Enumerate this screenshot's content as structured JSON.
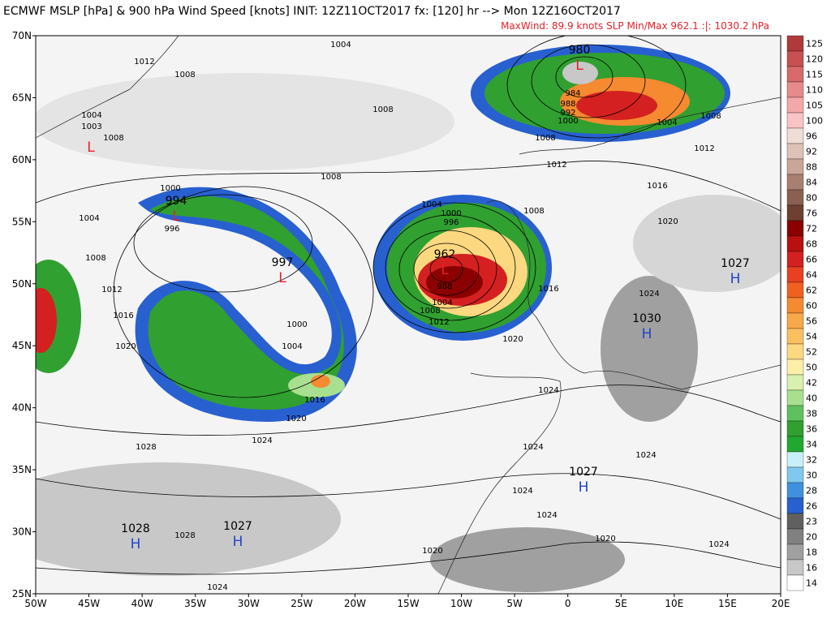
{
  "header": {
    "title": "ECMWF MSLP [hPa] & 900 hPa Wind Speed [knots] INIT: 12Z11OCT2017 fx: [120] hr --> Mon 12Z16OCT2017",
    "subtitle": "MaxWind:  89.9 knots     SLP Min/Max 962.1 :|: 1030.2 hPa"
  },
  "map": {
    "lat_labels": [
      "70N",
      "65N",
      "60N",
      "55N",
      "50N",
      "45N",
      "40N",
      "35N",
      "30N",
      "25N"
    ],
    "lon_labels": [
      "50W",
      "45W",
      "40W",
      "35W",
      "30W",
      "25W",
      "20W",
      "15W",
      "10W",
      "5W",
      "0",
      "5E",
      "10E",
      "15E",
      "20E"
    ],
    "centers": [
      {
        "letter": "L",
        "value": 980
      },
      {
        "letter": "L",
        "value": 994
      },
      {
        "letter": "L",
        "value": 997
      },
      {
        "letter": "L",
        "value": 962
      },
      {
        "letter": "L"
      },
      {
        "letter": "H",
        "value": 1027
      },
      {
        "letter": "H",
        "value": 1030
      },
      {
        "letter": "H",
        "value": 1027
      },
      {
        "letter": "H",
        "value": 1028
      },
      {
        "letter": "H",
        "value": 1027
      }
    ],
    "isobar_labels": [
      1004,
      1012,
      1008,
      1004,
      1003,
      1008,
      1008,
      1008,
      1012,
      1008,
      1004,
      1008,
      1012,
      1016,
      1020,
      1000,
      996,
      1000,
      1004,
      1016,
      1020,
      1024,
      1028,
      1004,
      1000,
      996,
      988,
      1004,
      1008,
      1012,
      1016,
      1020,
      1024,
      1024,
      1024,
      1024,
      1024,
      1020,
      1024,
      1020,
      1028,
      1024,
      984,
      988,
      992,
      1000,
      1004,
      1008,
      1012,
      1016,
      1020,
      1024,
      1008
    ]
  },
  "colorbar": {
    "levels": [
      125,
      120,
      115,
      110,
      105,
      100,
      96,
      92,
      88,
      84,
      80,
      76,
      72,
      68,
      66,
      64,
      62,
      60,
      56,
      54,
      52,
      50,
      42,
      40,
      38,
      36,
      34,
      32,
      30,
      28,
      26,
      23,
      20,
      18,
      16,
      14
    ],
    "colors": [
      "#b03a3a",
      "#c85050",
      "#d86a6a",
      "#e88a8a",
      "#f4a8a8",
      "#fac4c4",
      "#f0ddd5",
      "#ddc2b6",
      "#c8a698",
      "#a88070",
      "#8a6050",
      "#6e4030",
      "#8b0000",
      "#b81010",
      "#d42020",
      "#e84020",
      "#f06020",
      "#f58a30",
      "#f8a848",
      "#fac060",
      "#fcd880",
      "#fcf0a8",
      "#d8f0b0",
      "#a8e090",
      "#60c060",
      "#30a030",
      "#20a830",
      "#c8f0f8",
      "#80c8f0",
      "#4090e0",
      "#2860d0",
      "#606060",
      "#808080",
      "#a0a0a0",
      "#c8c8c8",
      "#ffffff"
    ]
  }
}
